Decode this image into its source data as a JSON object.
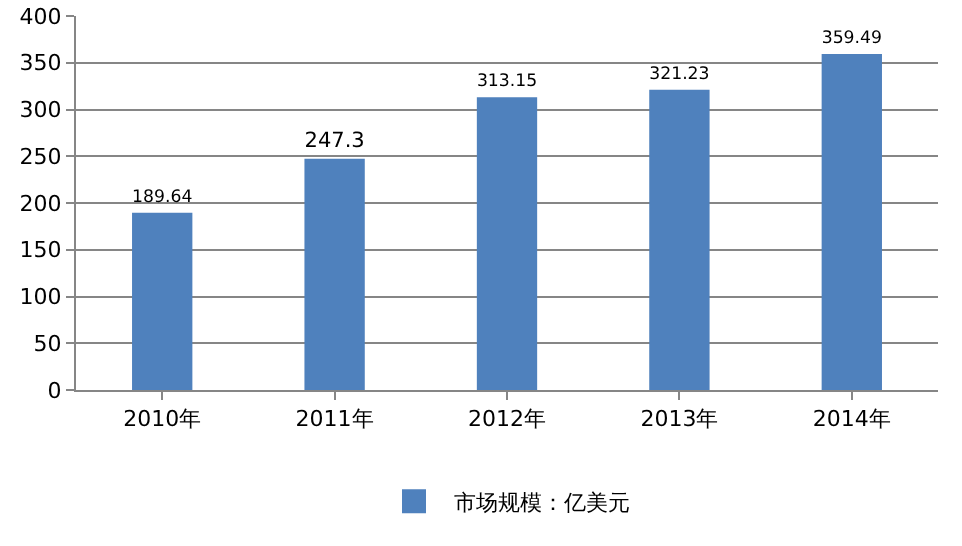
{
  "chart_data": {
    "type": "bar",
    "categories": [
      "2010年",
      "2011年",
      "2012年",
      "2013年",
      "2014年"
    ],
    "series": [
      {
        "name": "市场规模：亿美元",
        "color": "#4f81bd",
        "values": [
          189.64,
          247.3,
          313.15,
          321.23,
          359.49
        ]
      }
    ],
    "ylim": [
      0,
      400
    ],
    "yticks": [
      0,
      50,
      100,
      150,
      200,
      250,
      300,
      350,
      400
    ],
    "grid": "y",
    "legend": "bottom",
    "data_labels": true
  }
}
